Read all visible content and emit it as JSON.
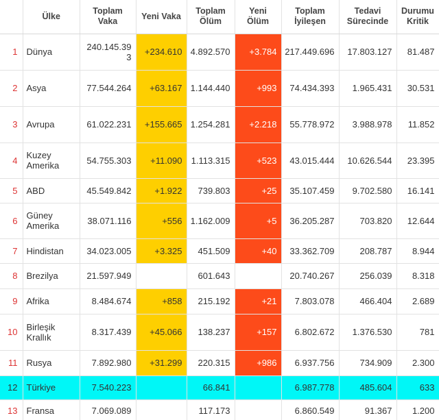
{
  "headers": {
    "rank": "",
    "country": "Ülke",
    "total_cases": "Toplam Vaka",
    "new_cases": "Yeni Vaka",
    "total_deaths": "Toplam Ölüm",
    "new_deaths": "Yeni Ölüm",
    "total_recovered": "Toplam İyileşen",
    "active": "Tedavi Sürecinde",
    "critical": "Durumu Kritik"
  },
  "rows": [
    {
      "rank": "1",
      "country": "Dünya",
      "total_cases": "240.145.393",
      "new_cases": "+234.610",
      "total_deaths": "4.892.570",
      "new_deaths": "+3.784",
      "total_recovered": "217.449.696",
      "active": "17.803.127",
      "critical": "81.487"
    },
    {
      "rank": "2",
      "country": "Asya",
      "total_cases": "77.544.264",
      "new_cases": "+63.167",
      "total_deaths": "1.144.440",
      "new_deaths": "+993",
      "total_recovered": "74.434.393",
      "active": "1.965.431",
      "critical": "30.531"
    },
    {
      "rank": "3",
      "country": "Avrupa",
      "total_cases": "61.022.231",
      "new_cases": "+155.665",
      "total_deaths": "1.254.281",
      "new_deaths": "+2.218",
      "total_recovered": "55.778.972",
      "active": "3.988.978",
      "critical": "11.852"
    },
    {
      "rank": "4",
      "country": "Kuzey Amerika",
      "total_cases": "54.755.303",
      "new_cases": "+11.090",
      "total_deaths": "1.113.315",
      "new_deaths": "+523",
      "total_recovered": "43.015.444",
      "active": "10.626.544",
      "critical": "23.395"
    },
    {
      "rank": "5",
      "country": "ABD",
      "total_cases": "45.549.842",
      "new_cases": "+1.922",
      "total_deaths": "739.803",
      "new_deaths": "+25",
      "total_recovered": "35.107.459",
      "active": "9.702.580",
      "critical": "16.141"
    },
    {
      "rank": "6",
      "country": "Güney Amerika",
      "total_cases": "38.071.116",
      "new_cases": "+556",
      "total_deaths": "1.162.009",
      "new_deaths": "+5",
      "total_recovered": "36.205.287",
      "active": "703.820",
      "critical": "12.644"
    },
    {
      "rank": "7",
      "country": "Hindistan",
      "total_cases": "34.023.005",
      "new_cases": "+3.325",
      "total_deaths": "451.509",
      "new_deaths": "+40",
      "total_recovered": "33.362.709",
      "active": "208.787",
      "critical": "8.944"
    },
    {
      "rank": "8",
      "country": "Brezilya",
      "total_cases": "21.597.949",
      "new_cases": "",
      "total_deaths": "601.643",
      "new_deaths": "",
      "total_recovered": "20.740.267",
      "active": "256.039",
      "critical": "8.318"
    },
    {
      "rank": "9",
      "country": "Afrika",
      "total_cases": "8.484.674",
      "new_cases": "+858",
      "total_deaths": "215.192",
      "new_deaths": "+21",
      "total_recovered": "7.803.078",
      "active": "466.404",
      "critical": "2.689"
    },
    {
      "rank": "10",
      "country": "Birleşik Krallık",
      "total_cases": "8.317.439",
      "new_cases": "+45.066",
      "total_deaths": "138.237",
      "new_deaths": "+157",
      "total_recovered": "6.802.672",
      "active": "1.376.530",
      "critical": "781"
    },
    {
      "rank": "11",
      "country": "Rusya",
      "total_cases": "7.892.980",
      "new_cases": "+31.299",
      "total_deaths": "220.315",
      "new_deaths": "+986",
      "total_recovered": "6.937.756",
      "active": "734.909",
      "critical": "2.300"
    },
    {
      "rank": "12",
      "country": "Türkiye",
      "total_cases": "7.540.223",
      "new_cases": "",
      "total_deaths": "66.841",
      "new_deaths": "",
      "total_recovered": "6.987.778",
      "active": "485.604",
      "critical": "633"
    },
    {
      "rank": "13",
      "country": "Fransa",
      "total_cases": "7.069.089",
      "new_cases": "",
      "total_deaths": "117.173",
      "new_deaths": "",
      "total_recovered": "6.860.549",
      "active": "91.367",
      "critical": "1.200"
    }
  ],
  "colors": {
    "new_cases_bg": "#fecf00",
    "new_deaths_bg": "#fd4b1a",
    "highlight_row_bg": "#00f7f7",
    "rank_text": "#dd3333"
  }
}
